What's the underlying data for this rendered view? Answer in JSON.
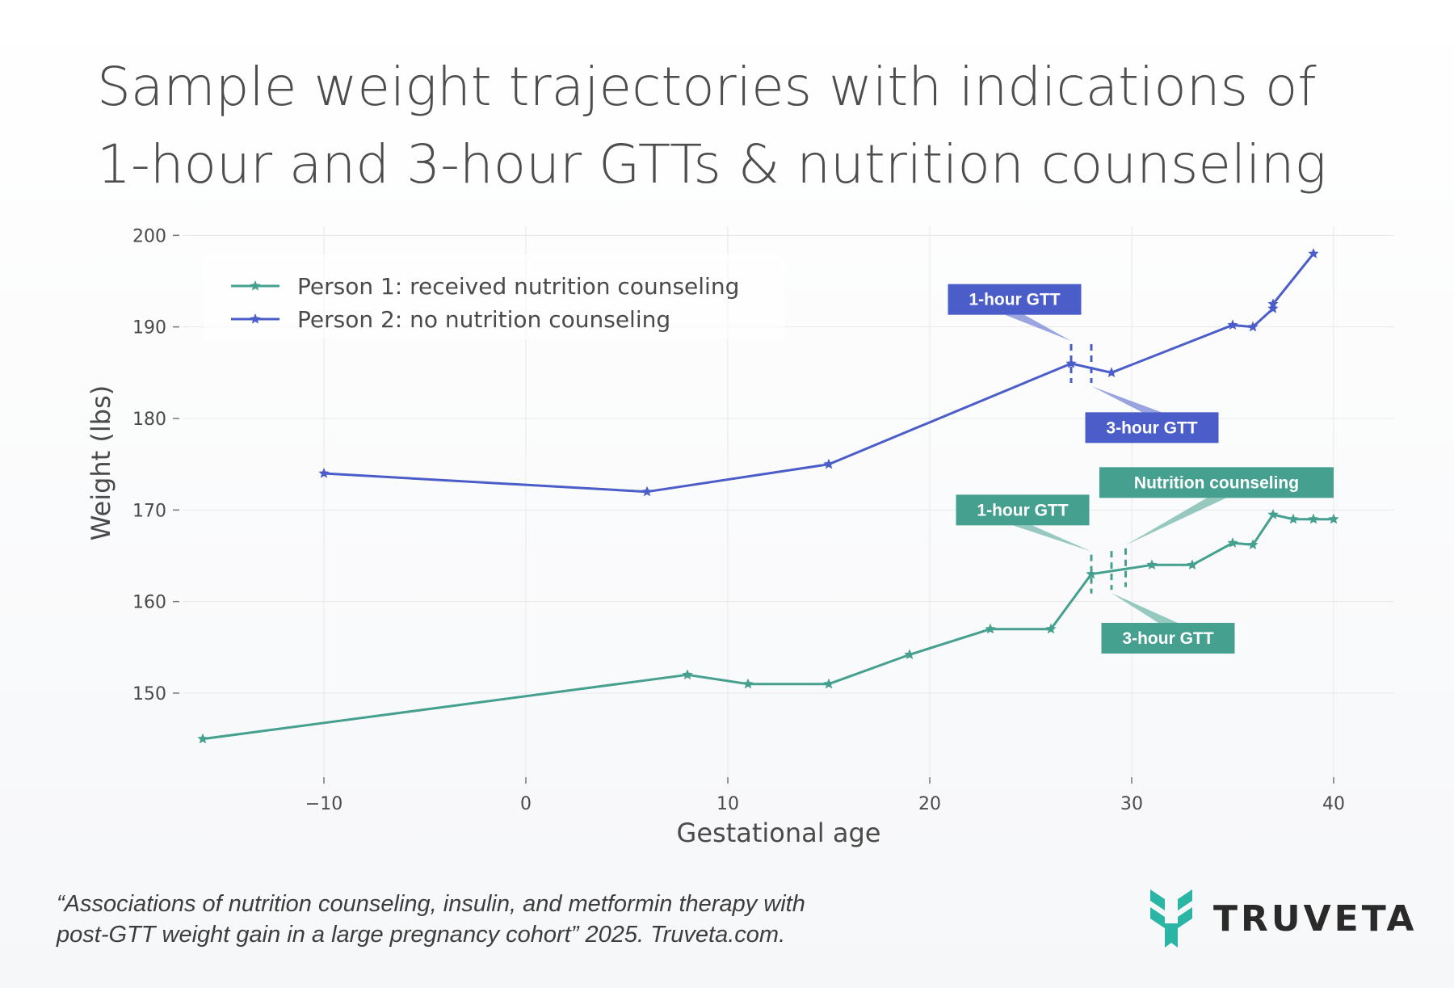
{
  "title": {
    "line1": "Sample weight trajectories with indications of",
    "line2": "1-hour and 3-hour GTTs & nutrition counseling"
  },
  "citation": {
    "line1": "“Associations of nutrition counseling, insulin, and metformin therapy with",
    "line2": "post-GTT weight gain in a large pregnancy cohort” 2025. Truveta.com."
  },
  "logo": {
    "text": "TRUVETA",
    "color": "#2bb5a5",
    "icon": "truveta-leaf-icon"
  },
  "chart_data": {
    "type": "line",
    "title": "Sample weight trajectories with indications of 1-hour and 3-hour GTTs & nutrition counseling",
    "xlabel": "Gestational age",
    "ylabel": "Weight (lbs)",
    "xlim": [
      -17,
      43
    ],
    "ylim": [
      141,
      201
    ],
    "xticks": [
      -10,
      0,
      10,
      20,
      30,
      40
    ],
    "xtick_labels": [
      "−10",
      "0",
      "10",
      "20",
      "30",
      "40"
    ],
    "yticks": [
      150,
      160,
      170,
      180,
      190,
      200
    ],
    "ytick_labels": [
      "150",
      "160",
      "170",
      "180",
      "190",
      "200"
    ],
    "grid": true,
    "legend_position": "top-left",
    "series": [
      {
        "name": "Person 1: received nutrition counseling",
        "color": "#45a08f",
        "marker": "star",
        "x": [
          -16,
          8,
          11,
          15,
          19,
          23,
          26,
          28,
          31,
          33,
          35,
          36,
          37,
          38,
          39,
          40
        ],
        "y": [
          145,
          152,
          151,
          151,
          154.2,
          157,
          157,
          163,
          164,
          164,
          166.4,
          166.2,
          169.5,
          169,
          169,
          169
        ]
      },
      {
        "name": "Person 2: no nutrition counseling",
        "color": "#4a5dc9",
        "marker": "star",
        "x": [
          -10,
          6,
          15,
          27,
          29,
          35,
          36,
          37,
          37,
          39
        ],
        "y": [
          174,
          172,
          175,
          186,
          185,
          190.2,
          190,
          192,
          192.5,
          198
        ]
      }
    ],
    "event_markers": [
      {
        "series": 1,
        "x": 27,
        "y_center": 186,
        "label": "1-hour GTT",
        "label_at": [
          24.2,
          193
        ]
      },
      {
        "series": 1,
        "x": 28,
        "y_center": 186,
        "label": "3-hour GTT",
        "label_at": [
          31,
          179
        ]
      },
      {
        "series": 0,
        "x": 28,
        "y_center": 163,
        "label": "1-hour GTT",
        "label_at": [
          24.6,
          170
        ]
      },
      {
        "series": 0,
        "x": 29,
        "y_center": 163.4,
        "label": "3-hour GTT",
        "label_at": [
          31.8,
          156
        ]
      },
      {
        "series": 0,
        "x": 29.7,
        "y_center": 163.7,
        "label": "Nutrition counseling",
        "label_at": [
          34.2,
          173
        ]
      }
    ]
  }
}
